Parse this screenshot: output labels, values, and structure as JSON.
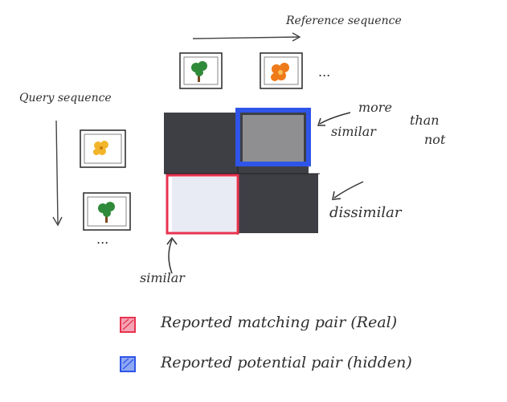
{
  "labels": {
    "reference_sequence": "Reference sequence",
    "query_sequence": "Query sequence",
    "ellipsis_reference": "...",
    "ellipsis_query": "...",
    "similar": "similar",
    "more_similar_line1": "more",
    "more_similar_line2": "similar",
    "than_not_line1": "than",
    "than_not_line2": "not",
    "dissimilar": "dissimilar"
  },
  "legend": {
    "items": [
      {
        "label": "Reported matching pair (Real)",
        "color": "#e8334f"
      },
      {
        "label": "Reported potential pair (hidden)",
        "color": "#2f55e8"
      }
    ]
  },
  "reference_frames": [
    {
      "icon": "tree-icon"
    },
    {
      "icon": "flower-icon"
    }
  ],
  "query_frames": [
    {
      "icon": "flower-icon"
    },
    {
      "icon": "tree-icon"
    }
  ],
  "grid": {
    "cells": [
      {
        "position": "top-left",
        "shade": "dark"
      },
      {
        "position": "top-right",
        "shade": "gray",
        "outline": "blue"
      },
      {
        "position": "bottom-left",
        "shade": "light",
        "outline": "red"
      },
      {
        "position": "bottom-right",
        "shade": "dark"
      }
    ]
  },
  "colors": {
    "red_outline": "#e8334f",
    "blue_outline": "#2f55e8",
    "dark_cell": "#3e3f44",
    "gray_cell": "#8f8f92",
    "light_cell": "#e9ebf4",
    "tree_foliage": "#2f8a3a",
    "tree_trunk": "#7a4a22",
    "flower_orange": "#ef7a1a",
    "flower_yellow": "#f2b52a"
  }
}
